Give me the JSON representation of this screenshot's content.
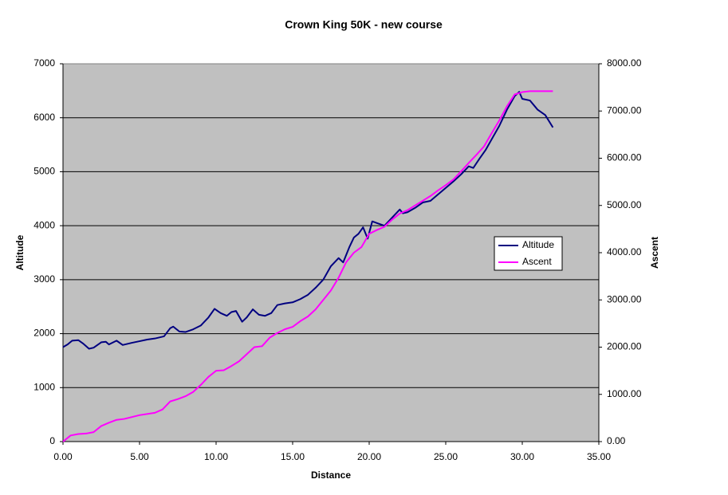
{
  "chart_data": {
    "type": "line",
    "title": "Crown King 50K - new course",
    "x_label": "Distance",
    "y_label": "Altitude",
    "y2_label": "Ascent",
    "xlim": [
      0,
      35
    ],
    "xticks": [
      {
        "value": 0,
        "label": "0.00"
      },
      {
        "value": 5,
        "label": "5.00"
      },
      {
        "value": 10,
        "label": "10.00"
      },
      {
        "value": 15,
        "label": "15.00"
      },
      {
        "value": 20,
        "label": "20.00"
      },
      {
        "value": 25,
        "label": "25.00"
      },
      {
        "value": 30,
        "label": "30.00"
      },
      {
        "value": 35,
        "label": "35.00"
      }
    ],
    "ylim": [
      0,
      7000
    ],
    "yticks": [
      0,
      1000,
      2000,
      3000,
      4000,
      5000,
      6000,
      7000
    ],
    "y2lim": [
      0,
      8000
    ],
    "y2ticks": [
      {
        "value": 0,
        "label": "0.00"
      },
      {
        "value": 1000,
        "label": "1000.00"
      },
      {
        "value": 2000,
        "label": "2000.00"
      },
      {
        "value": 3000,
        "label": "3000.00"
      },
      {
        "value": 4000,
        "label": "4000.00"
      },
      {
        "value": 5000,
        "label": "5000.00"
      },
      {
        "value": 6000,
        "label": "6000.00"
      },
      {
        "value": 7000,
        "label": "7000.00"
      },
      {
        "value": 8000,
        "label": "8000.00"
      }
    ],
    "grid": true,
    "legend": "right",
    "series": [
      {
        "name": "Altitude",
        "color": "#000080",
        "x": [
          0,
          0.3,
          0.6,
          1.0,
          1.3,
          1.7,
          2.0,
          2.5,
          2.8,
          3.0,
          3.5,
          3.9,
          4.5,
          5.0,
          5.5,
          6.0,
          6.6,
          7.0,
          7.2,
          7.6,
          8.0,
          8.5,
          9.0,
          9.5,
          9.9,
          10.3,
          10.7,
          11.0,
          11.3,
          11.7,
          12.0,
          12.4,
          12.8,
          13.2,
          13.6,
          14.0,
          14.5,
          15.0,
          15.5,
          16.0,
          16.5,
          17.0,
          17.5,
          18.0,
          18.3,
          18.7,
          19.0,
          19.3,
          19.6,
          19.9,
          20.2,
          20.5,
          21.0,
          21.5,
          22.0,
          22.2,
          22.5,
          23.0,
          23.5,
          24.0,
          24.5,
          25.0,
          25.5,
          26.0,
          26.5,
          26.8,
          27.2,
          27.6,
          28.0,
          28.5,
          29.0,
          29.5,
          29.8,
          30.0,
          30.5,
          31.0,
          31.5,
          32.0
        ],
        "values": [
          1750,
          1800,
          1870,
          1880,
          1820,
          1720,
          1740,
          1840,
          1850,
          1800,
          1870,
          1790,
          1830,
          1860,
          1890,
          1910,
          1950,
          2100,
          2130,
          2040,
          2030,
          2080,
          2150,
          2300,
          2460,
          2380,
          2330,
          2400,
          2420,
          2220,
          2300,
          2450,
          2350,
          2330,
          2380,
          2530,
          2560,
          2580,
          2640,
          2720,
          2850,
          3000,
          3250,
          3400,
          3320,
          3600,
          3780,
          3850,
          3970,
          3760,
          4080,
          4050,
          4000,
          4150,
          4300,
          4230,
          4250,
          4330,
          4430,
          4460,
          4580,
          4700,
          4820,
          4950,
          5100,
          5070,
          5240,
          5400,
          5600,
          5850,
          6150,
          6400,
          6480,
          6350,
          6320,
          6150,
          6050,
          5820
        ]
      },
      {
        "name": "Ascent",
        "color": "#ff00ff",
        "axis": "y2",
        "x": [
          0,
          0.5,
          1.0,
          1.5,
          2.0,
          2.5,
          3.0,
          3.5,
          4.0,
          5.0,
          6.0,
          6.5,
          7.0,
          7.5,
          8.0,
          8.5,
          9.0,
          9.5,
          10.0,
          10.5,
          11.0,
          11.5,
          12.0,
          12.5,
          13.0,
          13.5,
          14.0,
          14.5,
          15.0,
          15.5,
          16.0,
          16.5,
          17.0,
          17.5,
          18.0,
          18.5,
          19.0,
          19.5,
          20.0,
          20.5,
          21.0,
          21.5,
          22.0,
          22.5,
          23.0,
          23.5,
          24.0,
          24.5,
          25.0,
          25.5,
          26.0,
          26.5,
          27.0,
          27.5,
          28.0,
          28.5,
          29.0,
          29.5,
          30.0,
          30.5,
          32.0
        ],
        "values": [
          0,
          130,
          160,
          170,
          200,
          330,
          400,
          460,
          480,
          560,
          610,
          680,
          850,
          900,
          960,
          1050,
          1200,
          1370,
          1500,
          1510,
          1600,
          1700,
          1850,
          2000,
          2020,
          2200,
          2300,
          2380,
          2430,
          2550,
          2650,
          2800,
          3000,
          3200,
          3470,
          3800,
          4000,
          4120,
          4400,
          4480,
          4550,
          4700,
          4830,
          4900,
          5000,
          5100,
          5200,
          5320,
          5430,
          5550,
          5720,
          5900,
          6070,
          6250,
          6530,
          6800,
          7100,
          7350,
          7400,
          7420,
          7420
        ]
      }
    ]
  }
}
